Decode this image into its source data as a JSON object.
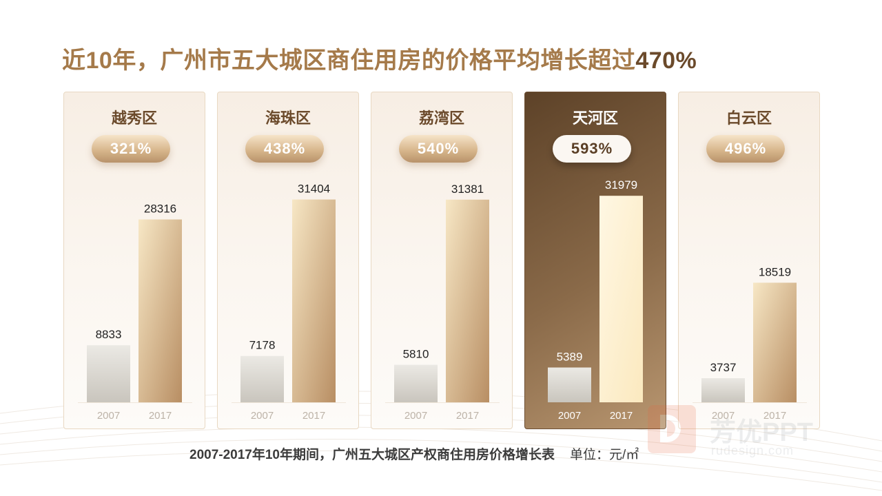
{
  "title_prefix": "近10年，广州市五大城区商住用房的价格平均增长超过",
  "title_suffix": "470%",
  "caption": "2007-2017年10年期间，广州五大城区产权商住用房价格增长表",
  "unit": "单位：元/㎡",
  "colors": {
    "bar_2007_top": "#ebe9e4",
    "bar_2007_bottom": "#c9c5bd",
    "bar_2017_top": "#f7e7c5",
    "bar_2017_bottom": "#b88e63",
    "active_card": "#6a4c30"
  },
  "watermark": {
    "name": "芳优PPT",
    "site": "rudesign.com"
  },
  "chart_data": {
    "type": "bar",
    "years": [
      "2007",
      "2017"
    ],
    "ylim": [
      0,
      32000
    ],
    "districts": [
      {
        "name": "越秀区",
        "growth": "321%",
        "values": [
          8833,
          28316
        ],
        "highlight": false
      },
      {
        "name": "海珠区",
        "growth": "438%",
        "values": [
          7178,
          31404
        ],
        "highlight": false
      },
      {
        "name": "荔湾区",
        "growth": "540%",
        "values": [
          5810,
          31381
        ],
        "highlight": false
      },
      {
        "name": "天河区",
        "growth": "593%",
        "values": [
          5389,
          31979
        ],
        "highlight": true
      },
      {
        "name": "白云区",
        "growth": "496%",
        "values": [
          3737,
          18519
        ],
        "highlight": false
      }
    ]
  }
}
